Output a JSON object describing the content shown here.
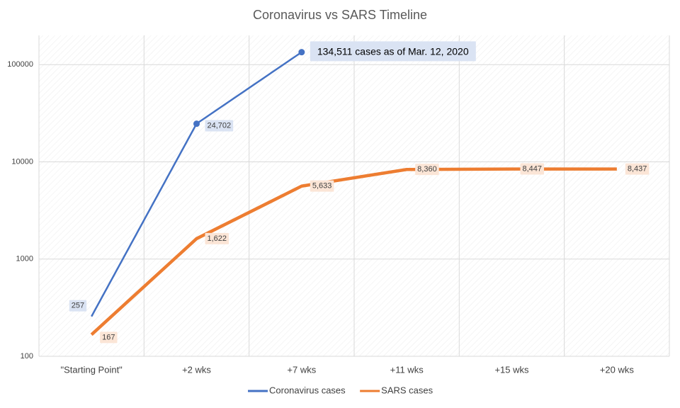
{
  "chart_data": {
    "type": "line",
    "title": "Coronavirus vs SARS Timeline",
    "categories": [
      "\"Starting Point\"",
      "+2 wks",
      "+7 wks",
      "+11 wks",
      "+15 wks",
      "+20 wks"
    ],
    "series": [
      {
        "name": "Coronavirus cases",
        "color": "#4472c4",
        "values": [
          257,
          24702,
          134511,
          null,
          null,
          null
        ],
        "value_labels": [
          "257",
          "24,702",
          "134,511 cases as of Mar. 12, 2020",
          null,
          null,
          null
        ]
      },
      {
        "name": "SARS cases",
        "color": "#ed7d31",
        "values": [
          167,
          1622,
          5633,
          8360,
          8447,
          8437
        ],
        "value_labels": [
          "167",
          "1,622",
          "5,633",
          "8,360",
          "8,447",
          "8,437"
        ]
      }
    ],
    "ylim": [
      100,
      200000
    ],
    "yticks": [
      100,
      1000,
      10000,
      100000
    ],
    "log_y": true,
    "grid": true,
    "legend": "bottom"
  }
}
